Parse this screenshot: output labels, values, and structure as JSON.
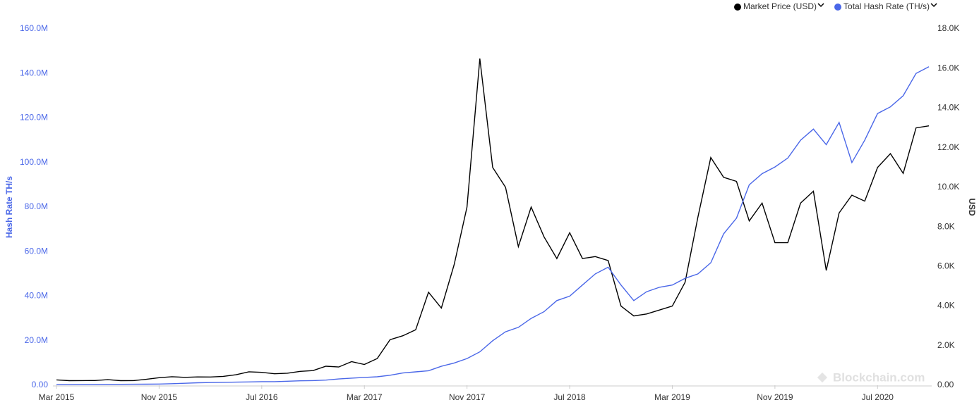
{
  "chart_data": {
    "type": "line",
    "y_label": "Hash Rate TH/s",
    "y2_label": "USD",
    "watermark": "Blockchain.com",
    "x": [
      "2015-03",
      "2015-04",
      "2015-05",
      "2015-06",
      "2015-07",
      "2015-08",
      "2015-09",
      "2015-10",
      "2015-11",
      "2015-12",
      "2016-01",
      "2016-02",
      "2016-03",
      "2016-04",
      "2016-05",
      "2016-06",
      "2016-07",
      "2016-08",
      "2016-09",
      "2016-10",
      "2016-11",
      "2016-12",
      "2017-01",
      "2017-02",
      "2017-03",
      "2017-04",
      "2017-05",
      "2017-06",
      "2017-07",
      "2017-08",
      "2017-09",
      "2017-10",
      "2017-11",
      "2017-12",
      "2018-01",
      "2018-02",
      "2018-03",
      "2018-04",
      "2018-05",
      "2018-06",
      "2018-07",
      "2018-08",
      "2018-09",
      "2018-10",
      "2018-11",
      "2018-12",
      "2019-01",
      "2019-02",
      "2019-03",
      "2019-04",
      "2019-05",
      "2019-06",
      "2019-07",
      "2019-08",
      "2019-09",
      "2019-10",
      "2019-11",
      "2019-12",
      "2020-01",
      "2020-02",
      "2020-03",
      "2020-04",
      "2020-05",
      "2020-06",
      "2020-07",
      "2020-08",
      "2020-09",
      "2020-10",
      "2020-11"
    ],
    "series": [
      {
        "name": "Market Price (USD)",
        "color": "#000000",
        "axis": "y2",
        "values": [
          270,
          230,
          235,
          240,
          280,
          230,
          235,
          300,
          380,
          430,
          400,
          420,
          415,
          450,
          530,
          680,
          650,
          580,
          610,
          700,
          740,
          960,
          920,
          1190,
          1050,
          1350,
          2300,
          2500,
          2800,
          4700,
          3900,
          6100,
          9000,
          16500,
          11000,
          10000,
          7000,
          9000,
          7500,
          6400,
          7700,
          6400,
          6500,
          6300,
          4000,
          3500,
          3600,
          3800,
          4000,
          5200,
          8500,
          11500,
          10500,
          10300,
          8300,
          9200,
          7200,
          7200,
          9200,
          9800,
          5800,
          8700,
          9600,
          9300,
          11000,
          11700,
          10700,
          13000,
          13100
        ]
      },
      {
        "name": "Total Hash Rate (TH/s)",
        "color": "#4a67e8",
        "values": [
          350000,
          360000,
          370000,
          380000,
          400000,
          420000,
          450000,
          480000,
          550000,
          700000,
          900000,
          1100000,
          1200000,
          1300000,
          1400000,
          1500000,
          1600000,
          1600000,
          1800000,
          2000000,
          2100000,
          2300000,
          2800000,
          3200000,
          3500000,
          3800000,
          4500000,
          5500000,
          6000000,
          6500000,
          8500000,
          10000000,
          12000000,
          15000000,
          20000000,
          24000000,
          26000000,
          30000000,
          33000000,
          38000000,
          40000000,
          45000000,
          50000000,
          53000000,
          45000000,
          38000000,
          42000000,
          44000000,
          45000000,
          48000000,
          50000000,
          55000000,
          68000000,
          75000000,
          90000000,
          95000000,
          98000000,
          102000000,
          110000000,
          115000000,
          108000000,
          118000000,
          100000000,
          110000000,
          122000000,
          125000000,
          130000000,
          140000000,
          143000000
        ]
      }
    ],
    "xlim": [
      "2015-03",
      "2020-11"
    ],
    "xticks": [
      {
        "value": "2015-03",
        "label": "Mar 2015"
      },
      {
        "value": "2015-11",
        "label": "Nov 2015"
      },
      {
        "value": "2016-07",
        "label": "Jul 2016"
      },
      {
        "value": "2017-03",
        "label": "Mar 2017"
      },
      {
        "value": "2017-11",
        "label": "Nov 2017"
      },
      {
        "value": "2018-07",
        "label": "Jul 2018"
      },
      {
        "value": "2019-03",
        "label": "Mar 2019"
      },
      {
        "value": "2019-11",
        "label": "Nov 2019"
      },
      {
        "value": "2020-07",
        "label": "Jul 2020"
      }
    ],
    "ylim": [
      0,
      160000000
    ],
    "yticks": [
      {
        "value": 0,
        "label": "0.00"
      },
      {
        "value": 20000000,
        "label": "20.0M"
      },
      {
        "value": 40000000,
        "label": "40.0M"
      },
      {
        "value": 60000000,
        "label": "60.0M"
      },
      {
        "value": 80000000,
        "label": "80.0M"
      },
      {
        "value": 100000000,
        "label": "100.0M"
      },
      {
        "value": 120000000,
        "label": "120.0M"
      },
      {
        "value": 140000000,
        "label": "140.0M"
      },
      {
        "value": 160000000,
        "label": "160.0M"
      }
    ],
    "y2lim": [
      0,
      18000
    ],
    "y2ticks": [
      {
        "value": 0,
        "label": "0.00"
      },
      {
        "value": 2000,
        "label": "2.0K"
      },
      {
        "value": 4000,
        "label": "4.0K"
      },
      {
        "value": 6000,
        "label": "6.0K"
      },
      {
        "value": 8000,
        "label": "8.0K"
      },
      {
        "value": 10000,
        "label": "10.0K"
      },
      {
        "value": 12000,
        "label": "12.0K"
      },
      {
        "value": 14000,
        "label": "14.0K"
      },
      {
        "value": 16000,
        "label": "16.0K"
      },
      {
        "value": 18000,
        "label": "18.0K"
      }
    ],
    "legend": "top-right"
  }
}
